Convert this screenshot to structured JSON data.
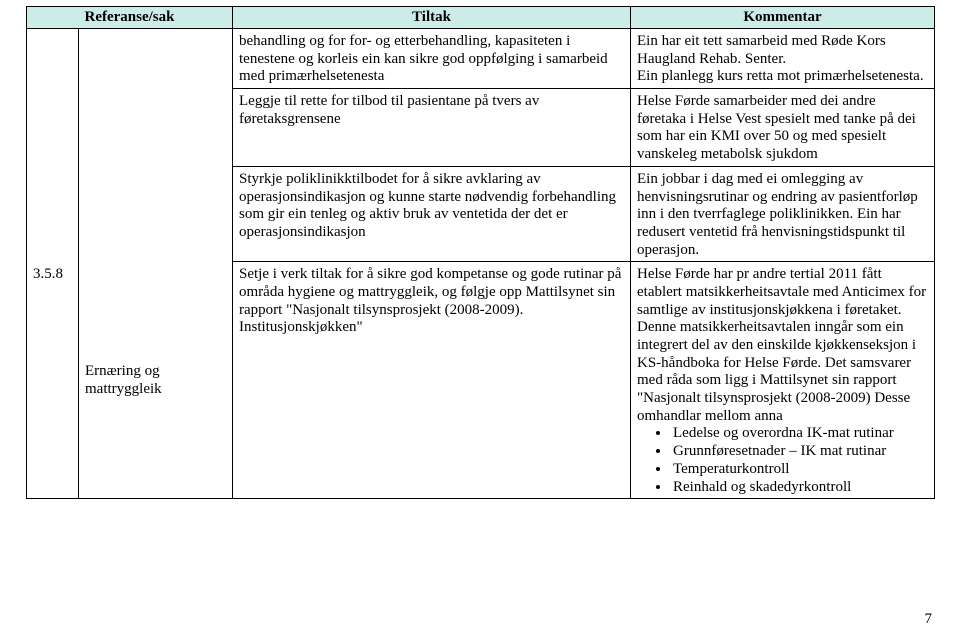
{
  "table": {
    "header_bg": "#ccece7",
    "columns": {
      "ref": "Referanse/sak",
      "tiltak": "Tiltak",
      "kommentar": "Kommentar"
    },
    "row1": {
      "ref": "",
      "sak": "",
      "tiltak_p1": "behandling og for for- og etterbehandling, kapasiteten i tenestene og korleis ein kan sikre god oppfølging i samarbeid med primærhelsetenesta",
      "kommentar_p1": "Ein har eit tett samarbeid med Røde Kors Haugland Rehab. Senter.",
      "kommentar_p2": "Ein planlegg kurs retta mot primærhelsetenesta."
    },
    "row2": {
      "ref": "",
      "sak": "",
      "tiltak_p1": "Leggje til rette for tilbod til pasientane på tvers av føretaksgrensene",
      "kommentar_p1": "Helse Førde samarbeider med dei andre føretaka i Helse Vest spesielt med tanke på dei som har ein KMI over 50 og med spesielt vanskeleg metabolsk sjukdom"
    },
    "row3": {
      "ref": "",
      "sak": "",
      "tiltak_p1": "Styrkje poliklinikktilbodet for å sikre avklaring av operasjonsindikasjon og kunne starte nødvendig forbehandling som gir ein tenleg og aktiv bruk av ventetida der det er operasjonsindikasjon",
      "kommentar_p1": "Ein jobbar i dag med ei omlegging av henvisningsrutinar og endring av pasientforløp inn i den tverrfaglege poliklinikken. Ein har redusert ventetid frå henvisningstidspunkt til operasjon."
    },
    "row4": {
      "ref": "3.5.8",
      "sak": "Ernæring og mattryggleik",
      "tiltak_p1": "Setje i verk tiltak for å sikre god kompetanse og gode rutinar på områda hygiene og mattryggleik, og følgje opp Mattilsynet sin rapport \"Nasjonalt tilsynsprosjekt (2008-2009). Institusjonskjøkken\"",
      "kommentar_p1": "Helse Førde har pr andre tertial 2011 fått etablert matsikkerheitsavtale med Anticimex for samtlige av institusjonskjøkkena i føretaket. Denne matsikkerheitsavtalen inngår som ein integrert del av den einskilde kjøkkenseksjon i KS-håndboka for Helse Førde. Det samsvarer med råda som ligg i Mattilsynet sin rapport \"Nasjonalt tilsynsprosjekt (2008-2009) Desse omhandlar mellom anna",
      "bullets": {
        "b1": "Ledelse og overordna IK-mat rutinar",
        "b2": "Grunnføresetnader – IK mat rutinar",
        "b3": "Temperaturkontroll",
        "b4": "Reinhald og skadedyrkontroll"
      }
    }
  },
  "page_number": "7"
}
